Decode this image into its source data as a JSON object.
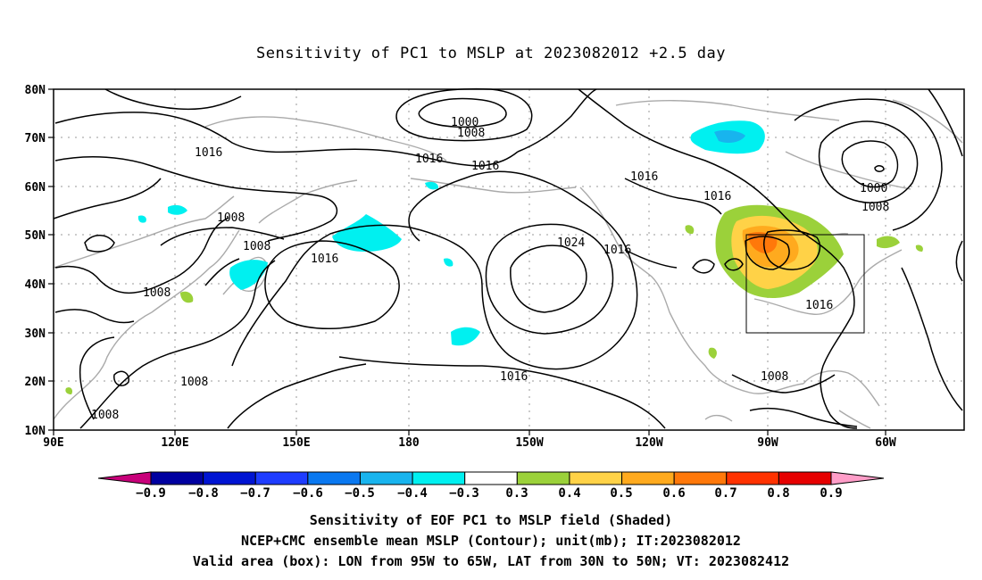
{
  "title": "Sensitivity of PC1 to MSLP at 2023082012 +2.5 day",
  "lat_labels": [
    "80N",
    "70N",
    "60N",
    "50N",
    "40N",
    "30N",
    "20N",
    "10N"
  ],
  "lon_labels": [
    "90E",
    "120E",
    "150E",
    "180",
    "150W",
    "120W",
    "90W",
    "60W"
  ],
  "contour_labels": [
    {
      "text": "1000",
      "lon": "160W",
      "lat": "73N"
    },
    {
      "text": "1008",
      "lon": "160W",
      "lat": "71N"
    },
    {
      "text": "1016",
      "lon": "115E",
      "lat": "67N"
    },
    {
      "text": "1016",
      "lon": "174W",
      "lat": "64N"
    },
    {
      "text": "1016",
      "lon": "164W",
      "lat": "62N"
    },
    {
      "text": "1016",
      "lon": "117W",
      "lat": "62N"
    },
    {
      "text": "1016",
      "lon": "103W",
      "lat": "53N"
    },
    {
      "text": "1000",
      "lon": "63W",
      "lat": "60N"
    },
    {
      "text": "1008",
      "lon": "63W",
      "lat": "56N"
    },
    {
      "text": "1008",
      "lon": "131E",
      "lat": "53N"
    },
    {
      "text": "1008",
      "lon": "139E",
      "lat": "47N"
    },
    {
      "text": "1024",
      "lon": "145W",
      "lat": "48N"
    },
    {
      "text": "1016",
      "lon": "123W",
      "lat": "47N"
    },
    {
      "text": "1016",
      "lon": "163E",
      "lat": "43N"
    },
    {
      "text": "1008",
      "lon": "112E",
      "lat": "38N"
    },
    {
      "text": "1016",
      "lon": "80W",
      "lat": "35N"
    },
    {
      "text": "1016",
      "lon": "155W",
      "lat": "21N"
    },
    {
      "text": "1008",
      "lon": "124E",
      "lat": "20N"
    },
    {
      "text": "1008",
      "lon": "103E",
      "lat": "14N"
    },
    {
      "text": "1008",
      "lon": "88W",
      "lat": "21N"
    }
  ],
  "colorbar": {
    "labels": [
      "−0.9",
      "−0.8",
      "−0.7",
      "−0.6",
      "−0.5",
      "−0.4",
      "−0.3",
      "0.3",
      "0.4",
      "0.5",
      "0.6",
      "0.7",
      "0.8",
      "0.9"
    ],
    "colors": [
      "#0000a0",
      "#0014d2",
      "#1e3cff",
      "#0a78f0",
      "#18b4ee",
      "#00f0f0",
      "#ffffff",
      "#9bd13a",
      "#ffd247",
      "#ffaa1e",
      "#ff780a",
      "#ff3200",
      "#e60000"
    ],
    "low_arrow_color": "#c8007a",
    "high_arrow_color": "#ff9dc8"
  },
  "valid_box": {
    "lon_from": "95W",
    "lon_to": "65W",
    "lat_from": "30N",
    "lat_to": "50N"
  },
  "captions": {
    "line1": "Sensitivity of EOF PC1 to MSLP field (Shaded)",
    "line2": "NCEP+CMC ensemble mean MSLP (Contour); unit(mb); IT:2023082012",
    "line3": "Valid area (box): LON from 95W to 65W, LAT from 30N to 50N; VT: 2023082412"
  }
}
